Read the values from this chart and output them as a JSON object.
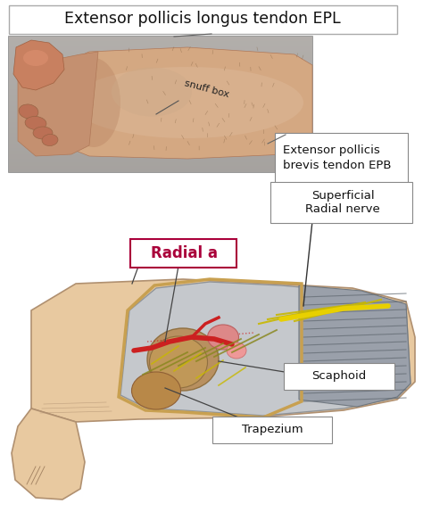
{
  "bg_color": "#ffffff",
  "title_top": "Extensor pollicis longus tendon EPL",
  "title_fontsize": 12.5,
  "photo_skin_light": "#d4a882",
  "photo_skin_mid": "#c49070",
  "photo_skin_dark": "#b07858",
  "photo_bg": "#a8a8a8",
  "photo_bg2": "#b8b0a8",
  "illus_skin": "#e8c9a0",
  "illus_skin_dark": "#c8a878",
  "illus_dissect_bg": "#c0c4c8",
  "illus_tendon_grey": "#8090a0",
  "illus_nerve_yellow": "#c8b800",
  "illus_nerve_bright": "#e8d000",
  "illus_bone_tan": "#c8a060",
  "illus_red": "#cc2020",
  "illus_pink": "#dd8888",
  "label_EPL_line_color": "#606060",
  "label_EPB_text": "Extensor pollicis\nbrevis tendon EPB",
  "label_snuff_box": "snuff box",
  "label_radial_a": "Radial a",
  "radial_color": "#aa003a",
  "label_superficial": "Superficial\nRadial nerve",
  "label_scaphoid": "Scaphoid",
  "label_trapezium": "Trapezium",
  "label_fontsize": 10,
  "small_fontsize": 9.5,
  "snuff_fontsize": 8
}
